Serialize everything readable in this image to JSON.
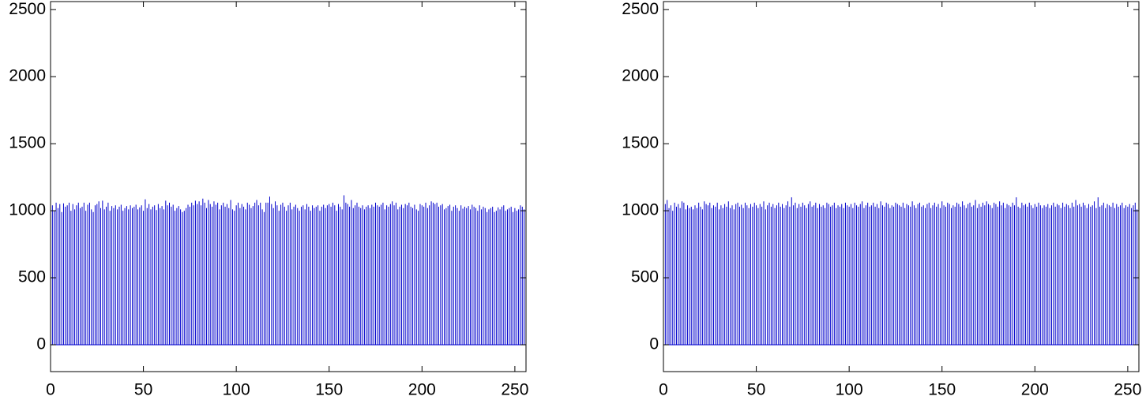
{
  "chart_data": [
    {
      "type": "stem",
      "color": "#0000cc",
      "xlim": [
        0,
        256
      ],
      "ylim": [
        -200,
        2560
      ],
      "xticks": [
        0,
        50,
        100,
        150,
        200,
        250
      ],
      "yticks": [
        0,
        500,
        1000,
        1500,
        2000,
        2500
      ],
      "x": [
        0,
        1,
        2,
        3,
        4,
        5,
        6,
        7,
        8,
        9,
        10,
        11,
        12,
        13,
        14,
        15,
        16,
        17,
        18,
        19,
        20,
        21,
        22,
        23,
        24,
        25,
        26,
        27,
        28,
        29,
        30,
        31,
        32,
        33,
        34,
        35,
        36,
        37,
        38,
        39,
        40,
        41,
        42,
        43,
        44,
        45,
        46,
        47,
        48,
        49,
        50,
        51,
        52,
        53,
        54,
        55,
        56,
        57,
        58,
        59,
        60,
        61,
        62,
        63,
        64,
        65,
        66,
        67,
        68,
        69,
        70,
        71,
        72,
        73,
        74,
        75,
        76,
        77,
        78,
        79,
        80,
        81,
        82,
        83,
        84,
        85,
        86,
        87,
        88,
        89,
        90,
        91,
        92,
        93,
        94,
        95,
        96,
        97,
        98,
        99,
        100,
        101,
        102,
        103,
        104,
        105,
        106,
        107,
        108,
        109,
        110,
        111,
        112,
        113,
        114,
        115,
        116,
        117,
        118,
        119,
        120,
        121,
        122,
        123,
        124,
        125,
        126,
        127,
        128,
        129,
        130,
        131,
        132,
        133,
        134,
        135,
        136,
        137,
        138,
        139,
        140,
        141,
        142,
        143,
        144,
        145,
        146,
        147,
        148,
        149,
        150,
        151,
        152,
        153,
        154,
        155,
        156,
        157,
        158,
        159,
        160,
        161,
        162,
        163,
        164,
        165,
        166,
        167,
        168,
        169,
        170,
        171,
        172,
        173,
        174,
        175,
        176,
        177,
        178,
        179,
        180,
        181,
        182,
        183,
        184,
        185,
        186,
        187,
        188,
        189,
        190,
        191,
        192,
        193,
        194,
        195,
        196,
        197,
        198,
        199,
        200,
        201,
        202,
        203,
        204,
        205,
        206,
        207,
        208,
        209,
        210,
        211,
        212,
        213,
        214,
        215,
        216,
        217,
        218,
        219,
        220,
        221,
        222,
        223,
        224,
        225,
        226,
        227,
        228,
        229,
        230,
        231,
        232,
        233,
        234,
        235,
        236,
        237,
        238,
        239,
        240,
        241,
        242,
        243,
        244,
        245,
        246,
        247,
        248,
        249,
        250,
        251,
        252,
        253,
        254,
        255
      ],
      "values": [
        1010,
        1040,
        1000,
        1060,
        1020,
        1050,
        990,
        1055,
        1030,
        1040,
        1060,
        1000,
        1050,
        1010,
        1040,
        1060,
        1020,
        1030,
        1060,
        1000,
        1045,
        1060,
        1010,
        990,
        1040,
        1050,
        1070,
        1020,
        1075,
        1010,
        1030,
        1060,
        1000,
        1035,
        1020,
        1040,
        1010,
        1030,
        1045,
        1000,
        1020,
        1035,
        1010,
        1040,
        1020,
        1030,
        1045,
        1010,
        1025,
        1040,
        1000,
        1085,
        1020,
        1050,
        1010,
        1030,
        1040,
        1005,
        1050,
        1020,
        1035,
        1010,
        1075,
        1040,
        1060,
        1030,
        1045,
        1000,
        1020,
        1035,
        1010,
        990,
        1000,
        1020,
        1045,
        1030,
        1060,
        1040,
        1075,
        1050,
        1070,
        1040,
        1090,
        1060,
        1020,
        1080,
        1050,
        1030,
        1070,
        1045,
        1060,
        1010,
        1040,
        1060,
        1030,
        1050,
        1020,
        1080,
        1010,
        1000,
        1040,
        1060,
        1020,
        1050,
        1030,
        1010,
        1060,
        1045,
        1020,
        1035,
        1060,
        1080,
        1040,
        1060,
        1010,
        990,
        1060,
        1060,
        1105,
        1050,
        1020,
        1070,
        1040,
        1000,
        1045,
        1060,
        1030,
        1000,
        1040,
        1060,
        1010,
        1030,
        1045,
        1020,
        1000,
        1030,
        1040,
        1010,
        1050,
        1030,
        1000,
        1040,
        1020,
        1030,
        1040,
        1000,
        1030,
        1045,
        1020,
        1040,
        1050,
        1030,
        1060,
        1040,
        1000,
        1050,
        1030,
        1010,
        1115,
        1060,
        1050,
        1030,
        1080,
        1020,
        1040,
        1060,
        1030,
        1020,
        1040,
        1010,
        1030,
        1040,
        1020,
        1045,
        1030,
        1060,
        1040,
        1030,
        1045,
        1060,
        1010,
        1040,
        1030,
        1050,
        1070,
        1040,
        1060,
        1010,
        1030,
        1045,
        1020,
        1050,
        1040,
        1060,
        1030,
        1020,
        1045,
        1010,
        1000,
        1050,
        1040,
        1030,
        1060,
        1020,
        1040,
        1070,
        1060,
        1050,
        1060,
        1030,
        1040,
        1050,
        1010,
        1020,
        1035,
        1045,
        1000,
        1030,
        1040,
        1020,
        1000,
        1040,
        1015,
        1030,
        1020,
        1035,
        1010,
        1045,
        1030,
        1020,
        1000,
        1040,
        1010,
        1030,
        1020,
        990,
        1010,
        1020,
        1030,
        990,
        1000,
        1025,
        1010,
        1030,
        1040,
        1000,
        1010,
        1020,
        1030,
        990,
        1020,
        1000,
        1010,
        1040,
        1030,
        1010
      ]
    },
    {
      "type": "stem",
      "color": "#0000cc",
      "xlim": [
        0,
        256
      ],
      "ylim": [
        -200,
        2560
      ],
      "xticks": [
        0,
        50,
        100,
        150,
        200,
        250
      ],
      "yticks": [
        0,
        500,
        1000,
        1500,
        2000,
        2500
      ],
      "x": [
        0,
        1,
        2,
        3,
        4,
        5,
        6,
        7,
        8,
        9,
        10,
        11,
        12,
        13,
        14,
        15,
        16,
        17,
        18,
        19,
        20,
        21,
        22,
        23,
        24,
        25,
        26,
        27,
        28,
        29,
        30,
        31,
        32,
        33,
        34,
        35,
        36,
        37,
        38,
        39,
        40,
        41,
        42,
        43,
        44,
        45,
        46,
        47,
        48,
        49,
        50,
        51,
        52,
        53,
        54,
        55,
        56,
        57,
        58,
        59,
        60,
        61,
        62,
        63,
        64,
        65,
        66,
        67,
        68,
        69,
        70,
        71,
        72,
        73,
        74,
        75,
        76,
        77,
        78,
        79,
        80,
        81,
        82,
        83,
        84,
        85,
        86,
        87,
        88,
        89,
        90,
        91,
        92,
        93,
        94,
        95,
        96,
        97,
        98,
        99,
        100,
        101,
        102,
        103,
        104,
        105,
        106,
        107,
        108,
        109,
        110,
        111,
        112,
        113,
        114,
        115,
        116,
        117,
        118,
        119,
        120,
        121,
        122,
        123,
        124,
        125,
        126,
        127,
        128,
        129,
        130,
        131,
        132,
        133,
        134,
        135,
        136,
        137,
        138,
        139,
        140,
        141,
        142,
        143,
        144,
        145,
        146,
        147,
        148,
        149,
        150,
        151,
        152,
        153,
        154,
        155,
        156,
        157,
        158,
        159,
        160,
        161,
        162,
        163,
        164,
        165,
        166,
        167,
        168,
        169,
        170,
        171,
        172,
        173,
        174,
        175,
        176,
        177,
        178,
        179,
        180,
        181,
        182,
        183,
        184,
        185,
        186,
        187,
        188,
        189,
        190,
        191,
        192,
        193,
        194,
        195,
        196,
        197,
        198,
        199,
        200,
        201,
        202,
        203,
        204,
        205,
        206,
        207,
        208,
        209,
        210,
        211,
        212,
        213,
        214,
        215,
        216,
        217,
        218,
        219,
        220,
        221,
        222,
        223,
        224,
        225,
        226,
        227,
        228,
        229,
        230,
        231,
        232,
        233,
        234,
        235,
        236,
        237,
        238,
        239,
        240,
        241,
        242,
        243,
        244,
        245,
        246,
        247,
        248,
        249,
        250,
        251,
        252,
        253,
        254,
        255
      ],
      "values": [
        1010,
        1050,
        1080,
        1020,
        1040,
        1000,
        1060,
        1030,
        1050,
        1020,
        1070,
        1060,
        1010,
        1040,
        1020,
        1030,
        1010,
        1040,
        1020,
        1060,
        1030,
        1010,
        1070,
        1050,
        1040,
        1060,
        1020,
        1040,
        1030,
        1060,
        1010,
        1040,
        1020,
        1050,
        1030,
        1070,
        1020,
        1040,
        1010,
        1050,
        1060,
        1030,
        1045,
        1020,
        1060,
        1040,
        1020,
        1050,
        1030,
        1060,
        1040,
        1020,
        1050,
        1030,
        1070,
        1010,
        1040,
        1060,
        1030,
        1050,
        1020,
        1040,
        1060,
        1030,
        1050,
        1020,
        1040,
        1070,
        1030,
        1100,
        1040,
        1060,
        1020,
        1050,
        1030,
        1060,
        1040,
        1020,
        1050,
        1070,
        1030,
        1040,
        1060,
        1020,
        1050,
        1030,
        1040,
        1020,
        1060,
        1050,
        1030,
        1040,
        1060,
        1020,
        1040,
        1030,
        1050,
        1020,
        1060,
        1040,
        1030,
        1050,
        1020,
        1060,
        1040,
        1030,
        1050,
        1070,
        1020,
        1040,
        1060,
        1030,
        1040,
        1060,
        1030,
        1050,
        1020,
        1070,
        1040,
        1030,
        1060,
        1050,
        1020,
        1040,
        1030,
        1060,
        1050,
        1040,
        1030,
        1060,
        1020,
        1050,
        1040,
        1030,
        1070,
        1040,
        1020,
        1050,
        1060,
        1030,
        1040,
        1020,
        1050,
        1060,
        1020,
        1040,
        1060,
        1030,
        1050,
        1020,
        1070,
        1040,
        1030,
        1060,
        1050,
        1020,
        1040,
        1030,
        1060,
        1050,
        1030,
        1070,
        1040,
        1020,
        1050,
        1060,
        1030,
        1040,
        1080,
        1020,
        1050,
        1030,
        1060,
        1040,
        1070,
        1050,
        1040,
        1020,
        1060,
        1050,
        1030,
        1070,
        1040,
        1060,
        1020,
        1050,
        1040,
        1030,
        1060,
        1040,
        1100,
        1030,
        1020,
        1060,
        1040,
        1050,
        1030,
        1060,
        1040,
        1020,
        1050,
        1030,
        1060,
        1040,
        1020,
        1040,
        1030,
        1050,
        1020,
        1040,
        1060,
        1030,
        1050,
        1040,
        1020,
        1060,
        1030,
        1050,
        1040,
        1020,
        1060,
        1030,
        1080,
        1040,
        1050,
        1030,
        1060,
        1040,
        1020,
        1050,
        1030,
        1040,
        1070,
        1020,
        1100,
        1030,
        1040,
        1060,
        1020,
        1050,
        1040,
        1030,
        1060,
        1020,
        1050,
        1030,
        1040,
        1060,
        1020,
        1040,
        1030,
        1050,
        1020,
        1040,
        1060,
        1010
      ]
    }
  ]
}
